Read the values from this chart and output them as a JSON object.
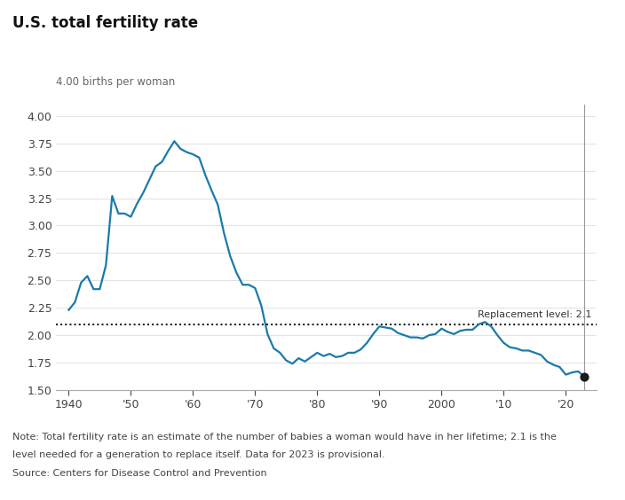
{
  "title": "U.S. total fertility rate",
  "ylabel": "4.00 births per woman",
  "line_color": "#1a7aab",
  "replacement_level": 2.1,
  "replacement_label": "Replacement level: 2.1",
  "background_color": "#ffffff",
  "note_line1": "Note: Total fertility rate is an estimate of the number of babies a woman would have in her lifetime; 2.1 is the",
  "note_line2": "level needed for a generation to replace itself. Data for 2023 is provisional.",
  "source": "Source: Centers for Disease Control and Prevention",
  "ylim": [
    1.5,
    4.1
  ],
  "xlim": [
    1938,
    2025
  ],
  "yticks": [
    1.5,
    1.75,
    2.0,
    2.25,
    2.5,
    2.75,
    3.0,
    3.25,
    3.5,
    3.75,
    4.0
  ],
  "xticks": [
    1940,
    1950,
    1960,
    1970,
    1980,
    1990,
    2000,
    2010,
    2020
  ],
  "xticklabels": [
    "1940",
    "'50",
    "'60",
    "'70",
    "'80",
    "'90",
    "2000",
    "'10",
    "'20"
  ],
  "data": [
    [
      1940,
      2.23
    ],
    [
      1941,
      2.3
    ],
    [
      1942,
      2.48
    ],
    [
      1943,
      2.54
    ],
    [
      1944,
      2.42
    ],
    [
      1945,
      2.42
    ],
    [
      1946,
      2.64
    ],
    [
      1947,
      3.27
    ],
    [
      1948,
      3.11
    ],
    [
      1949,
      3.11
    ],
    [
      1950,
      3.08
    ],
    [
      1951,
      3.2
    ],
    [
      1952,
      3.3
    ],
    [
      1953,
      3.42
    ],
    [
      1954,
      3.54
    ],
    [
      1955,
      3.58
    ],
    [
      1956,
      3.68
    ],
    [
      1957,
      3.77
    ],
    [
      1958,
      3.7
    ],
    [
      1959,
      3.67
    ],
    [
      1960,
      3.65
    ],
    [
      1961,
      3.62
    ],
    [
      1962,
      3.46
    ],
    [
      1963,
      3.32
    ],
    [
      1964,
      3.19
    ],
    [
      1965,
      2.93
    ],
    [
      1966,
      2.72
    ],
    [
      1967,
      2.57
    ],
    [
      1968,
      2.46
    ],
    [
      1969,
      2.46
    ],
    [
      1970,
      2.43
    ],
    [
      1971,
      2.27
    ],
    [
      1972,
      2.01
    ],
    [
      1973,
      1.88
    ],
    [
      1974,
      1.84
    ],
    [
      1975,
      1.77
    ],
    [
      1976,
      1.74
    ],
    [
      1977,
      1.79
    ],
    [
      1978,
      1.76
    ],
    [
      1979,
      1.8
    ],
    [
      1980,
      1.84
    ],
    [
      1981,
      1.81
    ],
    [
      1982,
      1.83
    ],
    [
      1983,
      1.8
    ],
    [
      1984,
      1.81
    ],
    [
      1985,
      1.84
    ],
    [
      1986,
      1.84
    ],
    [
      1987,
      1.87
    ],
    [
      1988,
      1.93
    ],
    [
      1989,
      2.01
    ],
    [
      1990,
      2.08
    ],
    [
      1991,
      2.07
    ],
    [
      1992,
      2.06
    ],
    [
      1993,
      2.02
    ],
    [
      1994,
      2.0
    ],
    [
      1995,
      1.98
    ],
    [
      1996,
      1.98
    ],
    [
      1997,
      1.97
    ],
    [
      1998,
      2.0
    ],
    [
      1999,
      2.01
    ],
    [
      2000,
      2.06
    ],
    [
      2001,
      2.03
    ],
    [
      2002,
      2.01
    ],
    [
      2003,
      2.04
    ],
    [
      2004,
      2.05
    ],
    [
      2005,
      2.05
    ],
    [
      2006,
      2.1
    ],
    [
      2007,
      2.12
    ],
    [
      2008,
      2.08
    ],
    [
      2009,
      2.0
    ],
    [
      2010,
      1.93
    ],
    [
      2011,
      1.89
    ],
    [
      2012,
      1.88
    ],
    [
      2013,
      1.86
    ],
    [
      2014,
      1.86
    ],
    [
      2015,
      1.84
    ],
    [
      2016,
      1.82
    ],
    [
      2017,
      1.76
    ],
    [
      2018,
      1.73
    ],
    [
      2019,
      1.71
    ],
    [
      2020,
      1.64
    ],
    [
      2021,
      1.66
    ],
    [
      2022,
      1.67
    ],
    [
      2023,
      1.62
    ]
  ],
  "endpoint_dot_color": "#1a1a1a",
  "endpoint_dot_size": 40,
  "vertical_line_x": 2023,
  "vertical_line_color": "#999999",
  "title_fontsize": 12,
  "tick_fontsize": 9,
  "note_fontsize": 8
}
